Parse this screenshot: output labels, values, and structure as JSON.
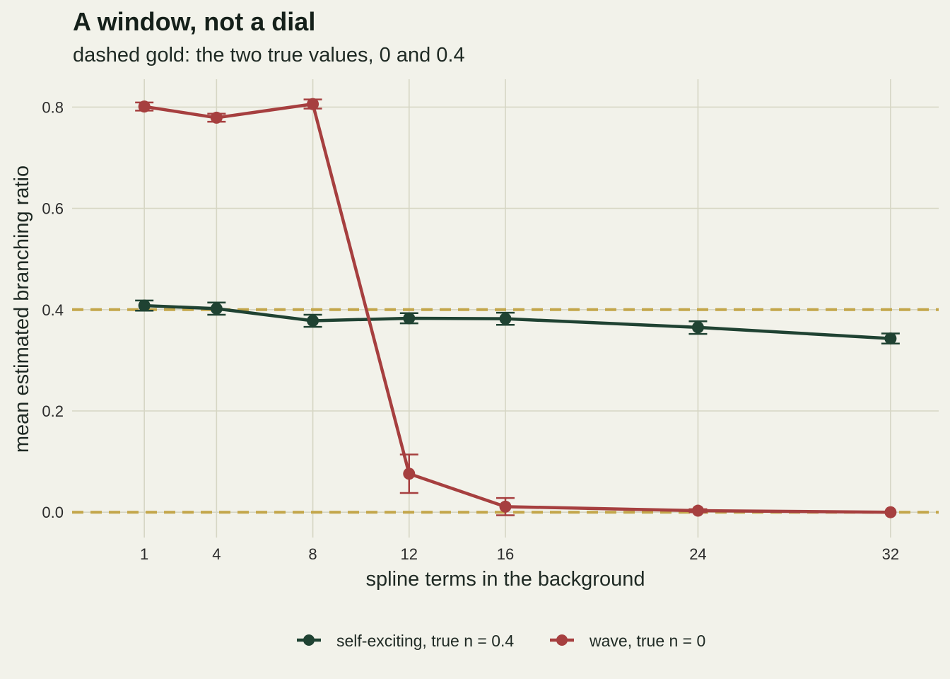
{
  "chart_data": {
    "type": "line",
    "title": "A window, not a dial",
    "subtitle": "dashed gold: the two true values, 0 and 0.4",
    "xlabel": "spline terms in the background",
    "ylabel": "mean estimated branching ratio",
    "x": [
      1,
      4,
      8,
      12,
      16,
      24,
      32
    ],
    "x_ticks": [
      "1",
      "4",
      "8",
      "12",
      "16",
      "24",
      "32"
    ],
    "xlim": [
      -2,
      34
    ],
    "ylim": [
      -0.05,
      0.855
    ],
    "y_ticks": [
      "0.0",
      "0.2",
      "0.4",
      "0.6",
      "0.8"
    ],
    "reference_lines": [
      0,
      0.4
    ],
    "grid": true,
    "legend_position": "bottom",
    "series": [
      {
        "name": "self-exciting, true n = 0.4",
        "color": "#1f4232",
        "values": [
          0.408,
          0.402,
          0.378,
          0.383,
          0.382,
          0.365,
          0.343
        ],
        "err_low": [
          0.398,
          0.39,
          0.366,
          0.373,
          0.37,
          0.352,
          0.333
        ],
        "err_high": [
          0.418,
          0.414,
          0.39,
          0.393,
          0.394,
          0.377,
          0.353
        ]
      },
      {
        "name": "wave, true n = 0",
        "color": "#a63f3f",
        "values": [
          0.801,
          0.779,
          0.806,
          0.076,
          0.011,
          0.003,
          0.0
        ],
        "err_low": [
          0.793,
          0.771,
          0.797,
          0.038,
          -0.006,
          0.0,
          0.0
        ],
        "err_high": [
          0.809,
          0.787,
          0.815,
          0.114,
          0.028,
          0.006,
          0.0
        ]
      }
    ],
    "colors": {
      "background": "#f2f2ea",
      "grid": "#d6d6c4",
      "reference": "#c3a64a"
    }
  }
}
